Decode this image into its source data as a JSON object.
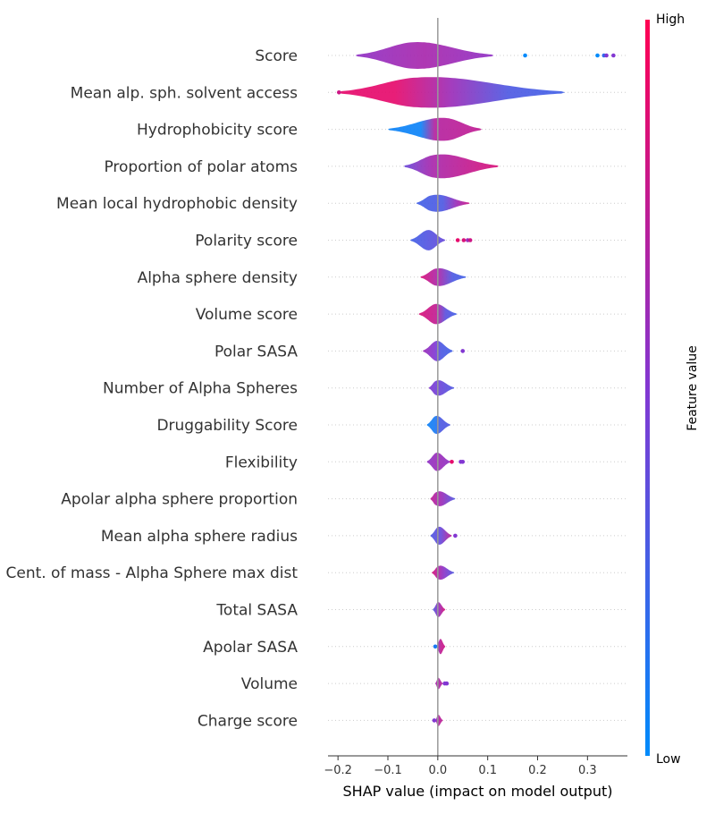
{
  "chart_data": {
    "type": "violin",
    "xlabel": "SHAP value (impact on model output)",
    "xlim": [
      -0.22,
      0.38
    ],
    "xticks": [
      -0.2,
      -0.1,
      0.0,
      0.1,
      0.2,
      0.3
    ],
    "xtick_labels": [
      "−0.2",
      "−0.1",
      "0.0",
      "0.1",
      "0.2",
      "0.3"
    ],
    "colorbar": {
      "title": "Feature value",
      "high_label": "High",
      "low_label": "Low",
      "low_color": "#008bfb",
      "high_color": "#ff0052"
    },
    "features": [
      {
        "name": "Score",
        "min": -0.165,
        "max": 0.112,
        "peak": -0.05,
        "width": 0.8,
        "colors": [
          [
            0.0,
            0.55
          ],
          [
            0.5,
            0.65
          ],
          [
            1.0,
            0.55
          ]
        ],
        "outliers": [
          [
            0.175,
            0.0
          ],
          [
            0.32,
            0.0
          ],
          [
            0.333,
            0.2
          ],
          [
            0.338,
            0.5
          ],
          [
            0.352,
            0.5
          ]
        ]
      },
      {
        "name": "Mean alp. sph. solvent access",
        "min": -0.2,
        "max": 0.255,
        "peak": -0.05,
        "width": 0.95,
        "colors": [
          [
            0.0,
            0.9
          ],
          [
            0.25,
            0.9
          ],
          [
            0.5,
            0.6
          ],
          [
            0.75,
            0.3
          ],
          [
            1.0,
            0.25
          ]
        ],
        "outliers": [
          [
            -0.198,
            0.8
          ]
        ]
      },
      {
        "name": "Hydrophobicity score",
        "min": -0.1,
        "max": 0.088,
        "peak": 0.02,
        "width": 0.7,
        "colors": [
          [
            0.0,
            0.05
          ],
          [
            0.35,
            0.05
          ],
          [
            0.5,
            0.7
          ],
          [
            1.0,
            0.75
          ]
        ],
        "outliers": []
      },
      {
        "name": "Proportion of polar atoms",
        "min": -0.068,
        "max": 0.122,
        "peak": -0.01,
        "width": 0.75,
        "colors": [
          [
            0.0,
            0.4
          ],
          [
            0.3,
            0.65
          ],
          [
            1.0,
            0.85
          ]
        ],
        "outliers": []
      },
      {
        "name": "Mean local hydrophobic density",
        "min": -0.043,
        "max": 0.064,
        "peak": -0.015,
        "width": 0.55,
        "colors": [
          [
            0.0,
            0.25
          ],
          [
            0.5,
            0.3
          ],
          [
            0.75,
            0.6
          ],
          [
            1.0,
            0.8
          ]
        ],
        "outliers": []
      },
      {
        "name": "Polarity score",
        "min": -0.055,
        "max": 0.015,
        "peak": -0.018,
        "width": 0.6,
        "colors": [
          [
            0.0,
            0.25
          ],
          [
            1.0,
            0.4
          ]
        ],
        "outliers": [
          [
            0.04,
            0.9
          ],
          [
            0.052,
            0.85
          ],
          [
            0.06,
            0.6
          ],
          [
            0.065,
            0.8
          ]
        ]
      },
      {
        "name": "Alpha sphere density",
        "min": -0.035,
        "max": 0.057,
        "peak": -0.005,
        "width": 0.55,
        "colors": [
          [
            0.0,
            0.85
          ],
          [
            0.4,
            0.65
          ],
          [
            0.7,
            0.3
          ],
          [
            1.0,
            0.25
          ]
        ],
        "outliers": []
      },
      {
        "name": "Volume score",
        "min": -0.038,
        "max": 0.038,
        "peak": -0.005,
        "width": 0.6,
        "colors": [
          [
            0.0,
            0.85
          ],
          [
            0.45,
            0.75
          ],
          [
            0.7,
            0.35
          ],
          [
            1.0,
            0.25
          ]
        ],
        "outliers": []
      },
      {
        "name": "Polar SASA",
        "min": -0.03,
        "max": 0.03,
        "peak": -0.002,
        "width": 0.6,
        "colors": [
          [
            0.0,
            0.6
          ],
          [
            0.4,
            0.5
          ],
          [
            0.6,
            0.3
          ],
          [
            1.0,
            0.25
          ]
        ],
        "outliers": [
          [
            0.05,
            0.5
          ]
        ]
      },
      {
        "name": "Number of Alpha Spheres",
        "min": -0.018,
        "max": 0.033,
        "peak": -0.005,
        "width": 0.5,
        "colors": [
          [
            0.0,
            0.5
          ],
          [
            0.5,
            0.4
          ],
          [
            1.0,
            0.3
          ]
        ],
        "outliers": []
      },
      {
        "name": "Druggability Score",
        "min": -0.022,
        "max": 0.025,
        "peak": -0.005,
        "width": 0.55,
        "colors": [
          [
            0.0,
            0.05
          ],
          [
            0.35,
            0.1
          ],
          [
            0.6,
            0.3
          ],
          [
            1.0,
            0.3
          ]
        ],
        "outliers": []
      },
      {
        "name": "Flexibility",
        "min": -0.022,
        "max": 0.025,
        "peak": -0.003,
        "width": 0.55,
        "colors": [
          [
            0.0,
            0.55
          ],
          [
            0.5,
            0.6
          ],
          [
            1.0,
            0.55
          ]
        ],
        "outliers": [
          [
            0.028,
            0.9
          ],
          [
            0.046,
            0.5
          ],
          [
            0.05,
            0.5
          ]
        ]
      },
      {
        "name": "Apolar alpha sphere proportion",
        "min": -0.015,
        "max": 0.035,
        "peak": -0.005,
        "width": 0.5,
        "colors": [
          [
            0.0,
            0.75
          ],
          [
            0.45,
            0.6
          ],
          [
            1.0,
            0.3
          ]
        ],
        "outliers": []
      },
      {
        "name": "Mean alpha sphere radius",
        "min": -0.015,
        "max": 0.028,
        "peak": 0.0,
        "width": 0.55,
        "colors": [
          [
            0.0,
            0.3
          ],
          [
            0.5,
            0.4
          ],
          [
            1.0,
            0.75
          ]
        ],
        "outliers": [
          [
            0.035,
            0.5
          ]
        ]
      },
      {
        "name": "Cent. of mass - Alpha Sphere max dist",
        "min": -0.012,
        "max": 0.033,
        "peak": 0.0,
        "width": 0.45,
        "colors": [
          [
            0.0,
            0.85
          ],
          [
            0.5,
            0.55
          ],
          [
            1.0,
            0.3
          ]
        ],
        "outliers": []
      },
      {
        "name": "Total SASA",
        "min": -0.01,
        "max": 0.015,
        "peak": 0.0,
        "width": 0.45,
        "colors": [
          [
            0.0,
            0.3
          ],
          [
            0.5,
            0.6
          ],
          [
            1.0,
            0.85
          ]
        ],
        "outliers": []
      },
      {
        "name": "Apolar SASA",
        "min": -0.003,
        "max": 0.015,
        "peak": 0.005,
        "width": 0.45,
        "colors": [
          [
            0.0,
            0.45
          ],
          [
            0.5,
            0.75
          ],
          [
            1.0,
            0.8
          ]
        ],
        "outliers": [
          [
            -0.005,
            0.1
          ]
        ]
      },
      {
        "name": "Volume",
        "min": -0.005,
        "max": 0.01,
        "peak": 0.0,
        "width": 0.35,
        "colors": [
          [
            0.0,
            0.65
          ],
          [
            1.0,
            0.7
          ]
        ],
        "outliers": [
          [
            0.014,
            0.5
          ],
          [
            0.018,
            0.5
          ]
        ]
      },
      {
        "name": "Charge score",
        "min": -0.005,
        "max": 0.01,
        "peak": 0.0,
        "width": 0.35,
        "colors": [
          [
            0.0,
            0.6
          ],
          [
            0.5,
            0.7
          ],
          [
            1.0,
            0.75
          ]
        ],
        "outliers": [
          [
            -0.007,
            0.5
          ]
        ]
      }
    ]
  }
}
